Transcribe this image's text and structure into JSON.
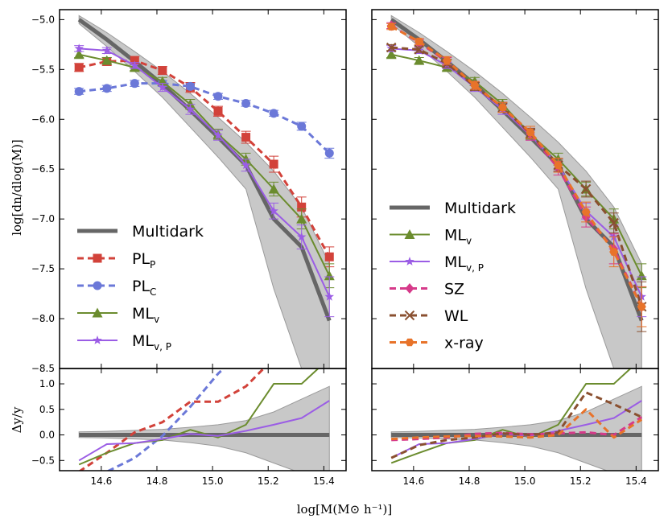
{
  "figure": {
    "xlabel": "log[M(M⊙ h⁻¹)]",
    "ylabel_top": "log[dn/dlog(M)]",
    "ylabel_bottom": "Δy/y"
  },
  "colors": {
    "Multidark": "#666666",
    "PL_P": "#d2423a",
    "PL_C": "#6b78d8",
    "ML_v": "#6b8c2e",
    "ML_vP": "#9b5de5",
    "SZ": "#d63a8a",
    "WL": "#8a5030",
    "xray": "#e8732a",
    "band": "#c8c8c8"
  },
  "legend_left": [
    {
      "key": "Multidark",
      "label": "Multidark",
      "sub": ""
    },
    {
      "key": "PL_P",
      "label": "PL",
      "sub": "P"
    },
    {
      "key": "PL_C",
      "label": "PL",
      "sub": "C"
    },
    {
      "key": "ML_v",
      "label": "ML",
      "sub": "v"
    },
    {
      "key": "ML_vP",
      "label": "ML",
      "sub": "v, P"
    }
  ],
  "legend_right": [
    {
      "key": "Multidark",
      "label": "Multidark",
      "sub": ""
    },
    {
      "key": "ML_v",
      "label": "ML",
      "sub": "v"
    },
    {
      "key": "ML_vP",
      "label": "ML",
      "sub": "v, P"
    },
    {
      "key": "SZ",
      "label": "SZ",
      "sub": ""
    },
    {
      "key": "WL",
      "label": "WL",
      "sub": ""
    },
    {
      "key": "xray",
      "label": "x-ray",
      "sub": ""
    }
  ],
  "chart_data": [
    {
      "type": "line",
      "panel": "top-left",
      "xlim": [
        14.45,
        15.48
      ],
      "ylim": [
        -8.5,
        -4.9
      ],
      "xticks": [
        14.6,
        14.8,
        15.0,
        15.2,
        15.4
      ],
      "xtick_labels": [
        "14.6",
        "14.8",
        "15.0",
        "15.2",
        "15.4"
      ],
      "yticks": [
        -5.0,
        -5.5,
        -6.0,
        -6.5,
        -7.0,
        -7.5,
        -8.0,
        -8.5
      ],
      "ytick_labels": [
        "−5.0",
        "−5.5",
        "−6.0",
        "−6.5",
        "−7.0",
        "−7.5",
        "−8.0",
        "−8.5"
      ],
      "band": {
        "x": [
          14.52,
          14.62,
          14.72,
          14.82,
          14.92,
          15.02,
          15.12,
          15.22,
          15.32,
          15.42
        ],
        "upper": [
          -4.96,
          -5.13,
          -5.32,
          -5.52,
          -5.74,
          -5.98,
          -6.23,
          -6.52,
          -6.88,
          -7.45
        ],
        "lower": [
          -5.04,
          -5.27,
          -5.52,
          -5.78,
          -6.08,
          -6.38,
          -6.7,
          -7.7,
          -8.5,
          -8.5
        ]
      },
      "series": [
        {
          "key": "Multidark",
          "name": "Multidark",
          "style": "solid",
          "marker": "none",
          "x": [
            14.52,
            14.62,
            14.72,
            14.82,
            14.92,
            15.02,
            15.12,
            15.22,
            15.32,
            15.42
          ],
          "y": [
            -5.0,
            -5.2,
            -5.42,
            -5.65,
            -5.91,
            -6.18,
            -6.46,
            -7.0,
            -7.28,
            -8.02
          ]
        },
        {
          "key": "PL_P",
          "name": "PL_P",
          "style": "dashed",
          "marker": "square",
          "x": [
            14.52,
            14.62,
            14.72,
            14.82,
            14.92,
            15.02,
            15.12,
            15.22,
            15.32,
            15.42
          ],
          "y": [
            -5.48,
            -5.42,
            -5.41,
            -5.51,
            -5.68,
            -5.92,
            -6.18,
            -6.45,
            -6.88,
            -7.38
          ],
          "err": [
            0.04,
            0.04,
            0.04,
            0.04,
            0.05,
            0.05,
            0.06,
            0.08,
            0.1,
            0.1
          ]
        },
        {
          "key": "PL_C",
          "name": "PL_C",
          "style": "dashed",
          "marker": "circle",
          "x": [
            14.52,
            14.62,
            14.72,
            14.82,
            14.92,
            15.02,
            15.12,
            15.22,
            15.32,
            15.42
          ],
          "y": [
            -5.72,
            -5.69,
            -5.64,
            -5.64,
            -5.67,
            -5.77,
            -5.84,
            -5.94,
            -6.07,
            -6.34
          ],
          "err": [
            0.03,
            0.03,
            0.03,
            0.03,
            0.03,
            0.03,
            0.03,
            0.03,
            0.04,
            0.05
          ]
        },
        {
          "key": "ML_v",
          "name": "ML_v",
          "style": "solid",
          "marker": "triangle",
          "x": [
            14.52,
            14.62,
            14.72,
            14.82,
            14.92,
            15.02,
            15.12,
            15.22,
            15.32,
            15.42
          ],
          "y": [
            -5.35,
            -5.41,
            -5.48,
            -5.62,
            -5.85,
            -6.15,
            -6.4,
            -6.7,
            -7.0,
            -7.57
          ],
          "err": [
            0.03,
            0.03,
            0.03,
            0.04,
            0.05,
            0.05,
            0.06,
            0.07,
            0.1,
            0.12
          ]
        },
        {
          "key": "ML_vP",
          "name": "ML_vP",
          "style": "solid",
          "marker": "star",
          "x": [
            14.52,
            14.62,
            14.72,
            14.82,
            14.92,
            15.02,
            15.12,
            15.22,
            15.32,
            15.42
          ],
          "y": [
            -5.29,
            -5.31,
            -5.46,
            -5.68,
            -5.9,
            -6.16,
            -6.46,
            -6.92,
            -7.18,
            -7.78
          ],
          "err": [
            0.03,
            0.03,
            0.03,
            0.04,
            0.05,
            0.05,
            0.06,
            0.08,
            0.12,
            0.2
          ]
        }
      ]
    },
    {
      "type": "line",
      "panel": "top-right",
      "xlim": [
        14.45,
        15.48
      ],
      "ylim": [
        -8.5,
        -4.9
      ],
      "xticks": [
        14.6,
        14.8,
        15.0,
        15.2,
        15.4
      ],
      "xtick_labels": [
        "14.6",
        "14.8",
        "15.0",
        "15.2",
        "15.4"
      ],
      "band": {
        "x": [
          14.52,
          14.62,
          14.72,
          14.82,
          14.92,
          15.02,
          15.12,
          15.22,
          15.32,
          15.42
        ],
        "upper": [
          -4.96,
          -5.13,
          -5.32,
          -5.52,
          -5.74,
          -5.98,
          -6.23,
          -6.52,
          -6.88,
          -7.45
        ],
        "lower": [
          -5.04,
          -5.27,
          -5.52,
          -5.78,
          -6.08,
          -6.38,
          -6.7,
          -7.7,
          -8.5,
          -8.5
        ]
      },
      "series": [
        {
          "key": "Multidark",
          "name": "Multidark",
          "style": "solid",
          "marker": "none",
          "x": [
            14.52,
            14.62,
            14.72,
            14.82,
            14.92,
            15.02,
            15.12,
            15.22,
            15.32,
            15.42
          ],
          "y": [
            -5.0,
            -5.2,
            -5.42,
            -5.65,
            -5.91,
            -6.18,
            -6.46,
            -7.0,
            -7.28,
            -8.02
          ]
        },
        {
          "key": "ML_v",
          "name": "ML_v",
          "style": "solid",
          "marker": "triangle",
          "x": [
            14.52,
            14.62,
            14.72,
            14.82,
            14.92,
            15.02,
            15.12,
            15.22,
            15.32,
            15.42
          ],
          "y": [
            -5.35,
            -5.41,
            -5.48,
            -5.62,
            -5.85,
            -6.15,
            -6.4,
            -6.7,
            -7.0,
            -7.57
          ],
          "err": [
            0.03,
            0.03,
            0.03,
            0.04,
            0.05,
            0.05,
            0.06,
            0.07,
            0.1,
            0.12
          ]
        },
        {
          "key": "ML_vP",
          "name": "ML_vP",
          "style": "solid",
          "marker": "star",
          "x": [
            14.52,
            14.62,
            14.72,
            14.82,
            14.92,
            15.02,
            15.12,
            15.22,
            15.32,
            15.42
          ],
          "y": [
            -5.29,
            -5.31,
            -5.46,
            -5.68,
            -5.9,
            -6.16,
            -6.46,
            -6.92,
            -7.18,
            -7.78
          ],
          "err": [
            0.03,
            0.03,
            0.03,
            0.04,
            0.05,
            0.05,
            0.06,
            0.08,
            0.12,
            0.2
          ]
        },
        {
          "key": "SZ",
          "name": "SZ",
          "style": "dashed",
          "marker": "diamond",
          "x": [
            14.52,
            14.62,
            14.72,
            14.82,
            14.92,
            15.02,
            15.12,
            15.22,
            15.32,
            15.42
          ],
          "y": [
            -5.06,
            -5.23,
            -5.42,
            -5.66,
            -5.88,
            -6.15,
            -6.49,
            -6.98,
            -7.3,
            -7.88
          ],
          "err": [
            0.03,
            0.03,
            0.04,
            0.04,
            0.05,
            0.06,
            0.07,
            0.1,
            0.15,
            0.2
          ]
        },
        {
          "key": "WL",
          "name": "WL",
          "style": "dashed",
          "marker": "x",
          "x": [
            14.52,
            14.62,
            14.72,
            14.82,
            14.92,
            15.02,
            15.12,
            15.22,
            15.32,
            15.42
          ],
          "y": [
            -5.28,
            -5.3,
            -5.44,
            -5.67,
            -5.88,
            -6.14,
            -6.46,
            -6.7,
            -7.04,
            -7.88
          ],
          "err": [
            0.03,
            0.03,
            0.04,
            0.04,
            0.05,
            0.05,
            0.06,
            0.08,
            0.1,
            0.25
          ]
        },
        {
          "key": "xray",
          "name": "x-ray",
          "style": "dashed",
          "marker": "hexagon",
          "x": [
            14.52,
            14.62,
            14.72,
            14.82,
            14.92,
            15.02,
            15.12,
            15.22,
            15.32,
            15.42
          ],
          "y": [
            -5.07,
            -5.22,
            -5.41,
            -5.66,
            -5.88,
            -6.13,
            -6.46,
            -6.93,
            -7.33,
            -7.88
          ],
          "err": [
            0.03,
            0.03,
            0.04,
            0.04,
            0.05,
            0.06,
            0.07,
            0.1,
            0.15,
            0.2
          ]
        }
      ]
    },
    {
      "type": "line",
      "panel": "bottom-left",
      "xlim": [
        14.45,
        15.48
      ],
      "ylim": [
        -0.7,
        1.3
      ],
      "yticks": [
        -0.5,
        0.0,
        0.5,
        1.0
      ],
      "ytick_labels": [
        "−0.5",
        "0.0",
        "0.5",
        "1.0"
      ],
      "xticks": [
        14.6,
        14.8,
        15.0,
        15.2,
        15.4
      ],
      "xtick_labels": [
        "14.6",
        "14.8",
        "15.0",
        "15.2",
        "15.4"
      ],
      "band": {
        "x": [
          14.52,
          14.62,
          14.72,
          14.82,
          14.92,
          15.02,
          15.12,
          15.22,
          15.32,
          15.42
        ],
        "upper": [
          0.06,
          0.07,
          0.09,
          0.11,
          0.15,
          0.2,
          0.28,
          0.45,
          0.7,
          0.95
        ],
        "lower": [
          -0.05,
          -0.06,
          -0.08,
          -0.1,
          -0.15,
          -0.22,
          -0.35,
          -0.55,
          -0.75,
          -0.75
        ]
      },
      "series": [
        {
          "key": "Multidark",
          "name": "Multidark",
          "style": "solid",
          "x": [
            14.52,
            15.42
          ],
          "y": [
            0.0,
            0.0
          ]
        },
        {
          "key": "PL_P",
          "name": "PL_P",
          "style": "dashed",
          "x": [
            14.52,
            14.62,
            14.72,
            14.82,
            14.92,
            15.02,
            15.12,
            15.22
          ],
          "y": [
            -0.72,
            -0.35,
            0.05,
            0.25,
            0.65,
            0.65,
            0.95,
            1.5
          ]
        },
        {
          "key": "PL_C",
          "name": "PL_C",
          "style": "dashed",
          "x": [
            14.52,
            14.62,
            14.72,
            14.82,
            14.92,
            15.02,
            15.08
          ],
          "y": [
            -0.95,
            -0.72,
            -0.45,
            -0.02,
            0.55,
            1.2,
            1.5
          ]
        },
        {
          "key": "ML_v",
          "name": "ML_v",
          "style": "solid",
          "x": [
            14.52,
            14.62,
            14.72,
            14.82,
            14.92,
            15.02,
            15.12,
            15.22,
            15.32,
            15.42
          ],
          "y": [
            -0.58,
            -0.35,
            -0.16,
            -0.1,
            0.1,
            -0.05,
            0.2,
            1.0,
            1.0,
            1.5
          ]
        },
        {
          "key": "ML_vP",
          "name": "ML_vP",
          "style": "solid",
          "x": [
            14.52,
            14.62,
            14.72,
            14.82,
            14.92,
            15.02,
            15.12,
            15.22,
            15.32,
            15.42
          ],
          "y": [
            -0.5,
            -0.18,
            -0.16,
            -0.08,
            0.02,
            -0.02,
            0.08,
            0.2,
            0.33,
            0.67
          ]
        }
      ]
    },
    {
      "type": "line",
      "panel": "bottom-right",
      "xlim": [
        14.45,
        15.48
      ],
      "ylim": [
        -0.7,
        1.3
      ],
      "xticks": [
        14.6,
        14.8,
        15.0,
        15.2,
        15.4
      ],
      "xtick_labels": [
        "14.6",
        "14.8",
        "15.0",
        "15.2",
        "15.4"
      ],
      "band": {
        "x": [
          14.52,
          14.62,
          14.72,
          14.82,
          14.92,
          15.02,
          15.12,
          15.22,
          15.32,
          15.42
        ],
        "upper": [
          0.06,
          0.07,
          0.09,
          0.11,
          0.15,
          0.2,
          0.28,
          0.45,
          0.7,
          0.95
        ],
        "lower": [
          -0.05,
          -0.06,
          -0.08,
          -0.1,
          -0.15,
          -0.22,
          -0.35,
          -0.55,
          -0.75,
          -0.75
        ]
      },
      "series": [
        {
          "key": "Multidark",
          "name": "Multidark",
          "style": "solid",
          "x": [
            14.52,
            15.42
          ],
          "y": [
            0.0,
            0.0
          ]
        },
        {
          "key": "ML_v",
          "name": "ML_v",
          "style": "solid",
          "x": [
            14.52,
            14.62,
            14.72,
            14.82,
            14.92,
            15.02,
            15.12,
            15.22,
            15.32,
            15.42
          ],
          "y": [
            -0.55,
            -0.35,
            -0.16,
            -0.1,
            0.1,
            -0.05,
            0.2,
            1.0,
            1.0,
            1.5
          ]
        },
        {
          "key": "ML_vP",
          "name": "ML_vP",
          "style": "solid",
          "x": [
            14.52,
            14.62,
            14.72,
            14.82,
            14.92,
            15.02,
            15.12,
            15.22,
            15.32,
            15.42
          ],
          "y": [
            -0.45,
            -0.18,
            -0.16,
            -0.08,
            0.02,
            -0.02,
            0.08,
            0.2,
            0.33,
            0.67
          ]
        },
        {
          "key": "SZ",
          "name": "SZ",
          "style": "dashed",
          "x": [
            14.52,
            14.62,
            14.72,
            14.82,
            14.92,
            15.02,
            15.12,
            15.22,
            15.32,
            15.42
          ],
          "y": [
            -0.1,
            -0.08,
            -0.05,
            0.02,
            0.04,
            0.01,
            0.03,
            0.05,
            0.0,
            0.35
          ]
        },
        {
          "key": "WL",
          "name": "WL",
          "style": "dashed",
          "x": [
            14.52,
            14.62,
            14.72,
            14.82,
            14.92,
            15.02,
            15.12,
            15.22,
            15.32,
            15.42
          ],
          "y": [
            -0.45,
            -0.2,
            -0.1,
            -0.05,
            0.03,
            0.0,
            0.05,
            0.83,
            0.6,
            0.35
          ]
        },
        {
          "key": "xray",
          "name": "x-ray",
          "style": "dashed",
          "x": [
            14.52,
            14.62,
            14.72,
            14.82,
            14.92,
            15.02,
            15.12,
            15.22,
            15.32,
            15.42
          ],
          "y": [
            -0.08,
            -0.05,
            -0.03,
            -0.02,
            -0.03,
            -0.05,
            0.0,
            0.5,
            -0.05,
            0.3
          ]
        }
      ]
    }
  ]
}
